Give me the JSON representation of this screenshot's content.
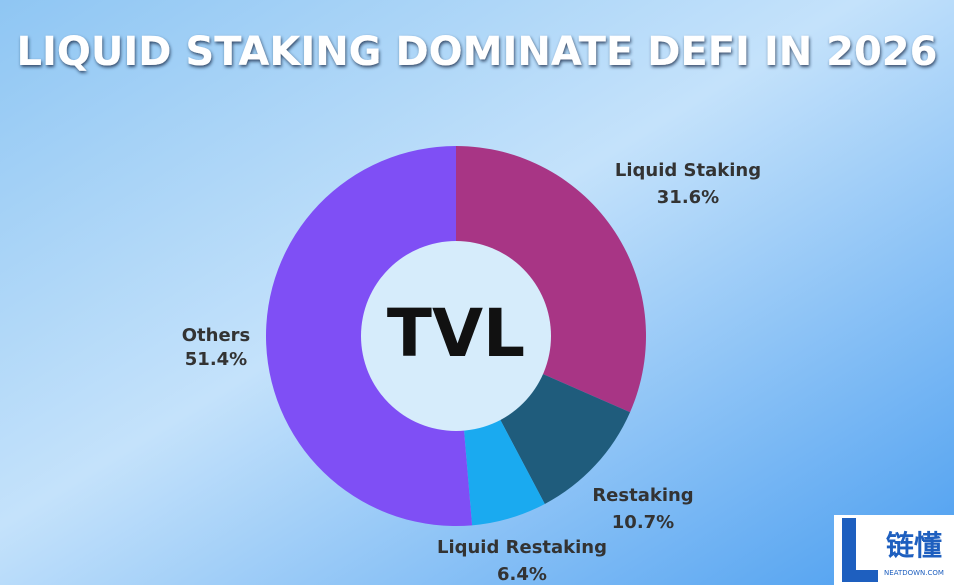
{
  "chart_data": {
    "type": "donut",
    "title": "LIQUID STAKING DOMINATE DEFI IN 2026",
    "center_label": "TVL",
    "categories": [
      "Liquid Staking",
      "Restaking",
      "Liquid Restaking",
      "Others"
    ],
    "values": [
      31.6,
      10.7,
      6.4,
      51.4
    ],
    "value_labels": [
      "31.6%",
      "10.7%",
      "6.4%",
      "51.4%"
    ],
    "colors": [
      "#a83585",
      "#1f5c7c",
      "#1aaaf0",
      "#7f4ff5"
    ]
  },
  "watermark": {
    "text": "链懂",
    "subtext": "NEATDOWN.COM"
  }
}
